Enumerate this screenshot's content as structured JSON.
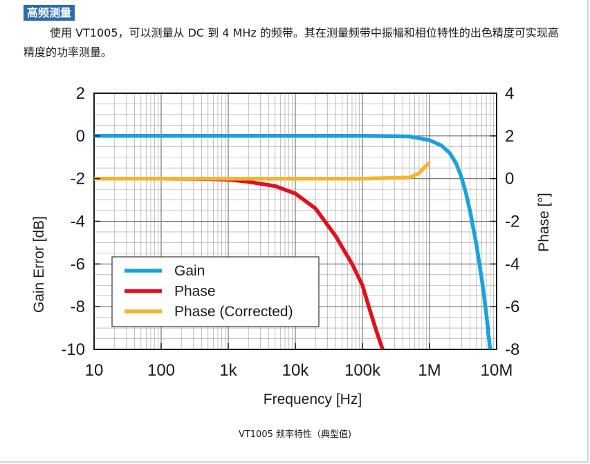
{
  "section": {
    "title": "高频测量",
    "description": "使用 VT1005，可以测量从 DC 到 4 MHz 的频带。其在测量频带中振幅和相位特性的出色精度可实现高精度的功率测量。",
    "caption": "VT1005 频率特性（典型值)"
  },
  "chart_data": {
    "type": "line",
    "title": "",
    "xlabel": "Frequency [Hz]",
    "ylabel": "Gain Error [dB]",
    "y2label": "Phase [°]",
    "xscale": "log",
    "xlim": [
      10,
      10000000
    ],
    "ylim": [
      -10,
      2
    ],
    "y2lim": [
      -8,
      4
    ],
    "grid": true,
    "legend_position": "lower-left",
    "x_ticks": [
      10,
      100,
      1000,
      10000,
      100000,
      1000000,
      10000000
    ],
    "x_tick_labels": [
      "10",
      "100",
      "1k",
      "10k",
      "100k",
      "1M",
      "10M"
    ],
    "y_ticks": [
      2,
      0,
      -2,
      -4,
      -6,
      -8,
      -10
    ],
    "y_tick_labels": [
      "2",
      "0",
      "-2",
      "-4",
      "-6",
      "-8",
      "-10"
    ],
    "y2_ticks": [
      4,
      2,
      0,
      -2,
      -4,
      -6,
      -8
    ],
    "y2_tick_labels": [
      "4",
      "2",
      "0",
      "-2",
      "-4",
      "-6",
      "-8"
    ],
    "series": [
      {
        "name": "Gain",
        "axis": "left",
        "color": "#19a3dd",
        "x": [
          10,
          100,
          1000,
          10000,
          100000,
          500000,
          1000000,
          1500000,
          2000000,
          2500000,
          3000000,
          3500000,
          4000000,
          5000000,
          6000000,
          7000000,
          7500000,
          8000000
        ],
        "y": [
          0,
          0,
          0,
          0,
          0,
          -0.02,
          -0.2,
          -0.45,
          -0.8,
          -1.3,
          -1.95,
          -2.7,
          -3.5,
          -5.1,
          -6.7,
          -8.3,
          -9.2,
          -10
        ]
      },
      {
        "name": "Phase",
        "axis": "right",
        "color": "#e3101c",
        "x": [
          10,
          100,
          500,
          1000,
          2000,
          5000,
          10000,
          20000,
          40000,
          70000,
          100000,
          130000,
          160000,
          200000
        ],
        "y": [
          0,
          0,
          -0.02,
          -0.05,
          -0.15,
          -0.35,
          -0.7,
          -1.4,
          -2.7,
          -4.0,
          -5.0,
          -6.2,
          -7.1,
          -8
        ]
      },
      {
        "name": "Phase (Corrected)",
        "axis": "right",
        "color": "#f6b331",
        "x": [
          10,
          100,
          1000,
          10000,
          100000,
          500000,
          700000,
          850000,
          1000000
        ],
        "y": [
          0,
          0,
          0,
          0,
          0,
          0.05,
          0.25,
          0.55,
          0.75
        ]
      }
    ]
  }
}
